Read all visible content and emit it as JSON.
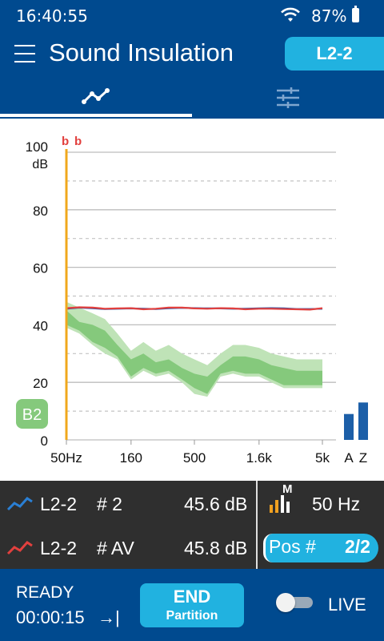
{
  "status": {
    "time": "16:40:55",
    "battery": "87%"
  },
  "app": {
    "title": "Sound Insulation",
    "mode_badge": "L2-2"
  },
  "tabs": [
    {
      "name": "graph",
      "icon": "line-chart-icon",
      "active": true
    },
    {
      "name": "settings",
      "icon": "sliders-icon",
      "active": false
    }
  ],
  "chart_data": {
    "type": "line",
    "ylabel_unit": "dB",
    "yticks": [
      "100",
      "80",
      "60",
      "40",
      "20",
      "0"
    ],
    "ylim": [
      0,
      100
    ],
    "xticks": [
      "50Hz",
      "160",
      "500",
      "1.6k",
      "5k"
    ],
    "cursor_flags": [
      "b",
      "b"
    ],
    "cursor_x": "50Hz",
    "band_label": "B2",
    "az_labels": [
      "A",
      "Z"
    ],
    "az_values": [
      9,
      13
    ],
    "x": [
      50,
      63,
      80,
      100,
      125,
      160,
      200,
      250,
      315,
      400,
      500,
      630,
      800,
      1000,
      1250,
      1600,
      2000,
      2500,
      3150,
      4000,
      5000
    ],
    "series": [
      {
        "name": "#2",
        "color": "#1f4fa8",
        "values": [
          45.6,
          46,
          45.8,
          45.5,
          45.6,
          45.7,
          45.6,
          45.5,
          45.8,
          45.9,
          45.8,
          45.7,
          45.7,
          45.6,
          45.6,
          45.7,
          45.8,
          45.7,
          45.5,
          45.5,
          45.6
        ]
      },
      {
        "name": "#AV",
        "color": "#e2403e",
        "values": [
          45.8,
          46.1,
          46,
          45.6,
          45.7,
          45.8,
          45.4,
          45.6,
          46,
          46,
          45.7,
          45.6,
          45.8,
          45.7,
          45.4,
          45.6,
          45.6,
          45.5,
          45.4,
          45.3,
          45.8
        ]
      }
    ],
    "band_outer": {
      "upper": [
        48,
        46,
        44,
        42,
        37,
        31,
        34,
        31,
        33,
        30,
        28,
        26,
        30,
        33,
        33,
        32,
        30,
        29,
        28,
        28,
        28
      ],
      "lower": [
        39,
        37,
        33,
        30,
        28,
        21,
        24,
        22,
        23,
        20,
        16,
        15,
        22,
        23,
        22,
        22,
        20,
        18,
        18,
        18,
        18
      ]
    },
    "band_inner": {
      "upper": [
        45,
        41,
        40,
        38,
        33,
        28,
        30,
        27,
        28,
        25,
        23,
        22,
        26,
        29,
        29,
        28,
        26,
        25,
        24,
        24,
        24
      ],
      "lower": [
        40,
        38,
        34,
        32,
        29,
        22,
        25,
        23,
        24,
        21,
        18,
        16,
        23,
        24,
        23,
        23,
        21,
        19,
        19,
        19,
        19
      ]
    }
  },
  "info": {
    "rows": [
      {
        "icon": "blue-line-icon",
        "name": "L2-2",
        "idx": "# 2",
        "value": "45.6 dB"
      },
      {
        "icon": "red-line-icon",
        "name": "L2-2",
        "idx": "# AV",
        "value": "45.8 dB"
      }
    ],
    "meter_label": "M",
    "frequency": "50 Hz",
    "pos_label": "Pos #",
    "pos_value": "2/2"
  },
  "bottom": {
    "state": "READY",
    "timer": "00:00:15",
    "timer_icon": "→|",
    "end_label": "END",
    "end_sub": "Partition",
    "live_label": "LIVE",
    "live_on": false
  }
}
